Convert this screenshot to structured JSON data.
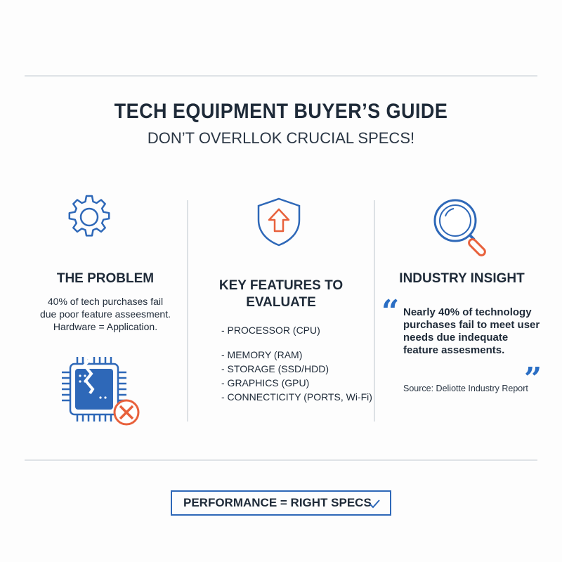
{
  "header": {
    "title": "TECH EQUIPMENT BUYER’S GUIDE",
    "subtitle": "DON’T OVERLLOK CRUCIAL SPECS!"
  },
  "problem": {
    "heading": "THE PROBLEM",
    "lines": [
      "40% of tech purchases fail",
      "due poor feature asseesment.",
      "Hardware = Application."
    ],
    "icon": "gear-icon",
    "illustration": "broken-chip-icon"
  },
  "features": {
    "heading_lines": [
      "KEY FEATURES TO",
      "EVALUATE"
    ],
    "items": [
      "- PROCESSOR (CPU)",
      "- MEMORY (RAM)",
      "- STORAGE (SSD/HDD)",
      "- GRAPHICS (GPU)",
      "- CONNECTICITY (PORTS, Wi-Fi)"
    ],
    "icon": "shield-arrow-icon"
  },
  "insight": {
    "heading": "INDUSTRY INSIGHT",
    "quote": "Nearly 40% of technology purchases fail to meet user needs due indequate feature assesments.",
    "source": "Source: Deliotte Industry Report",
    "icon": "magnifier-icon"
  },
  "footer": {
    "label": "PERFORMANCE = RIGHT SPECS",
    "icon": "checkmark-icon"
  },
  "colors": {
    "blue": "#2e68b8",
    "orange": "#e8613c",
    "text": "#1e2a38"
  }
}
